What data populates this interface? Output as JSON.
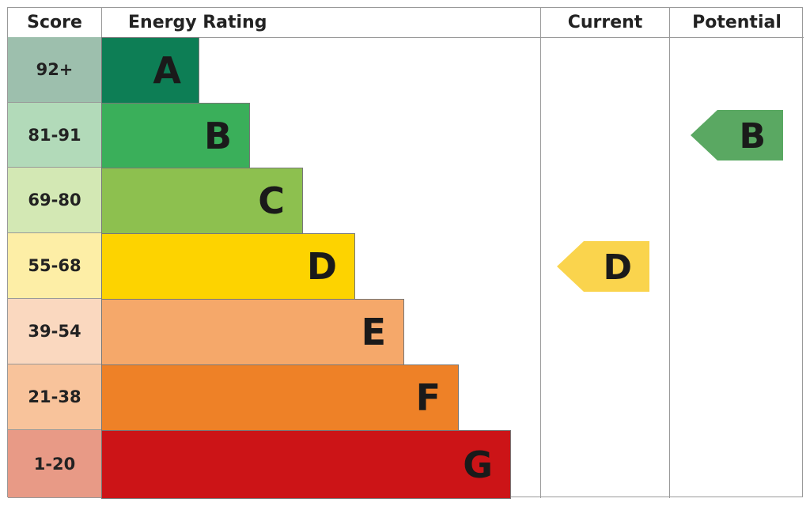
{
  "chart_data": {
    "type": "bar",
    "headers": {
      "score": "Score",
      "rating": "Energy Rating",
      "current": "Current",
      "potential": "Potential"
    },
    "bands": [
      {
        "score": "92+",
        "letter": "A",
        "bar_color": "#0d7e55",
        "score_color": "#9dbfad"
      },
      {
        "score": "81-91",
        "letter": "B",
        "bar_color": "#3aaf5a",
        "score_color": "#b2dab9"
      },
      {
        "score": "69-80",
        "letter": "C",
        "bar_color": "#8dc04f",
        "score_color": "#d3e8b4"
      },
      {
        "score": "55-68",
        "letter": "D",
        "bar_color": "#fdd300",
        "score_color": "#fdeea6"
      },
      {
        "score": "39-54",
        "letter": "E",
        "bar_color": "#f5a86a",
        "score_color": "#fad8bf"
      },
      {
        "score": "21-38",
        "letter": "F",
        "bar_color": "#ee8127",
        "score_color": "#f8c39b"
      },
      {
        "score": "1-20",
        "letter": "G",
        "bar_color": "#cc1417",
        "score_color": "#e89a86"
      }
    ],
    "current": {
      "letter": "D",
      "color": "#fad44d"
    },
    "potential": {
      "letter": "B",
      "color": "#5aa862"
    }
  }
}
